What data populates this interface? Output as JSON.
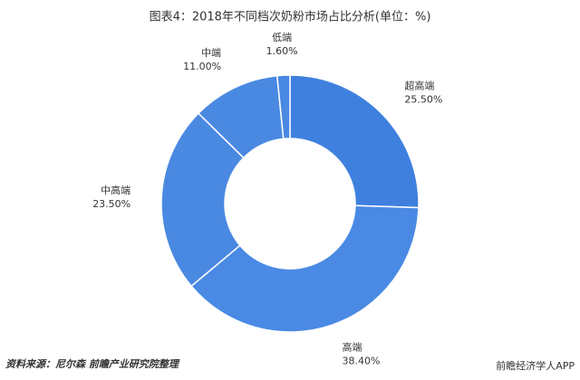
{
  "chart_data": {
    "type": "donut",
    "title": "图表4：2018年不同档次奶粉市场占比分析(单位：%)",
    "categories": [
      "超高端",
      "高端",
      "中高端",
      "中端",
      "低端"
    ],
    "values": [
      25.5,
      38.4,
      23.5,
      11.0,
      1.6
    ],
    "value_labels": [
      "25.50%",
      "38.40%",
      "23.50%",
      "11.00%",
      "1.60%"
    ],
    "colors": [
      "#3f80df",
      "#4a8ae4",
      "#4a89e2",
      "#4a89e2",
      "#4a89e2"
    ],
    "source": "资料来源：尼尔森 前瞻产业研究院整理",
    "watermark": "前瞻经济学人APP"
  }
}
